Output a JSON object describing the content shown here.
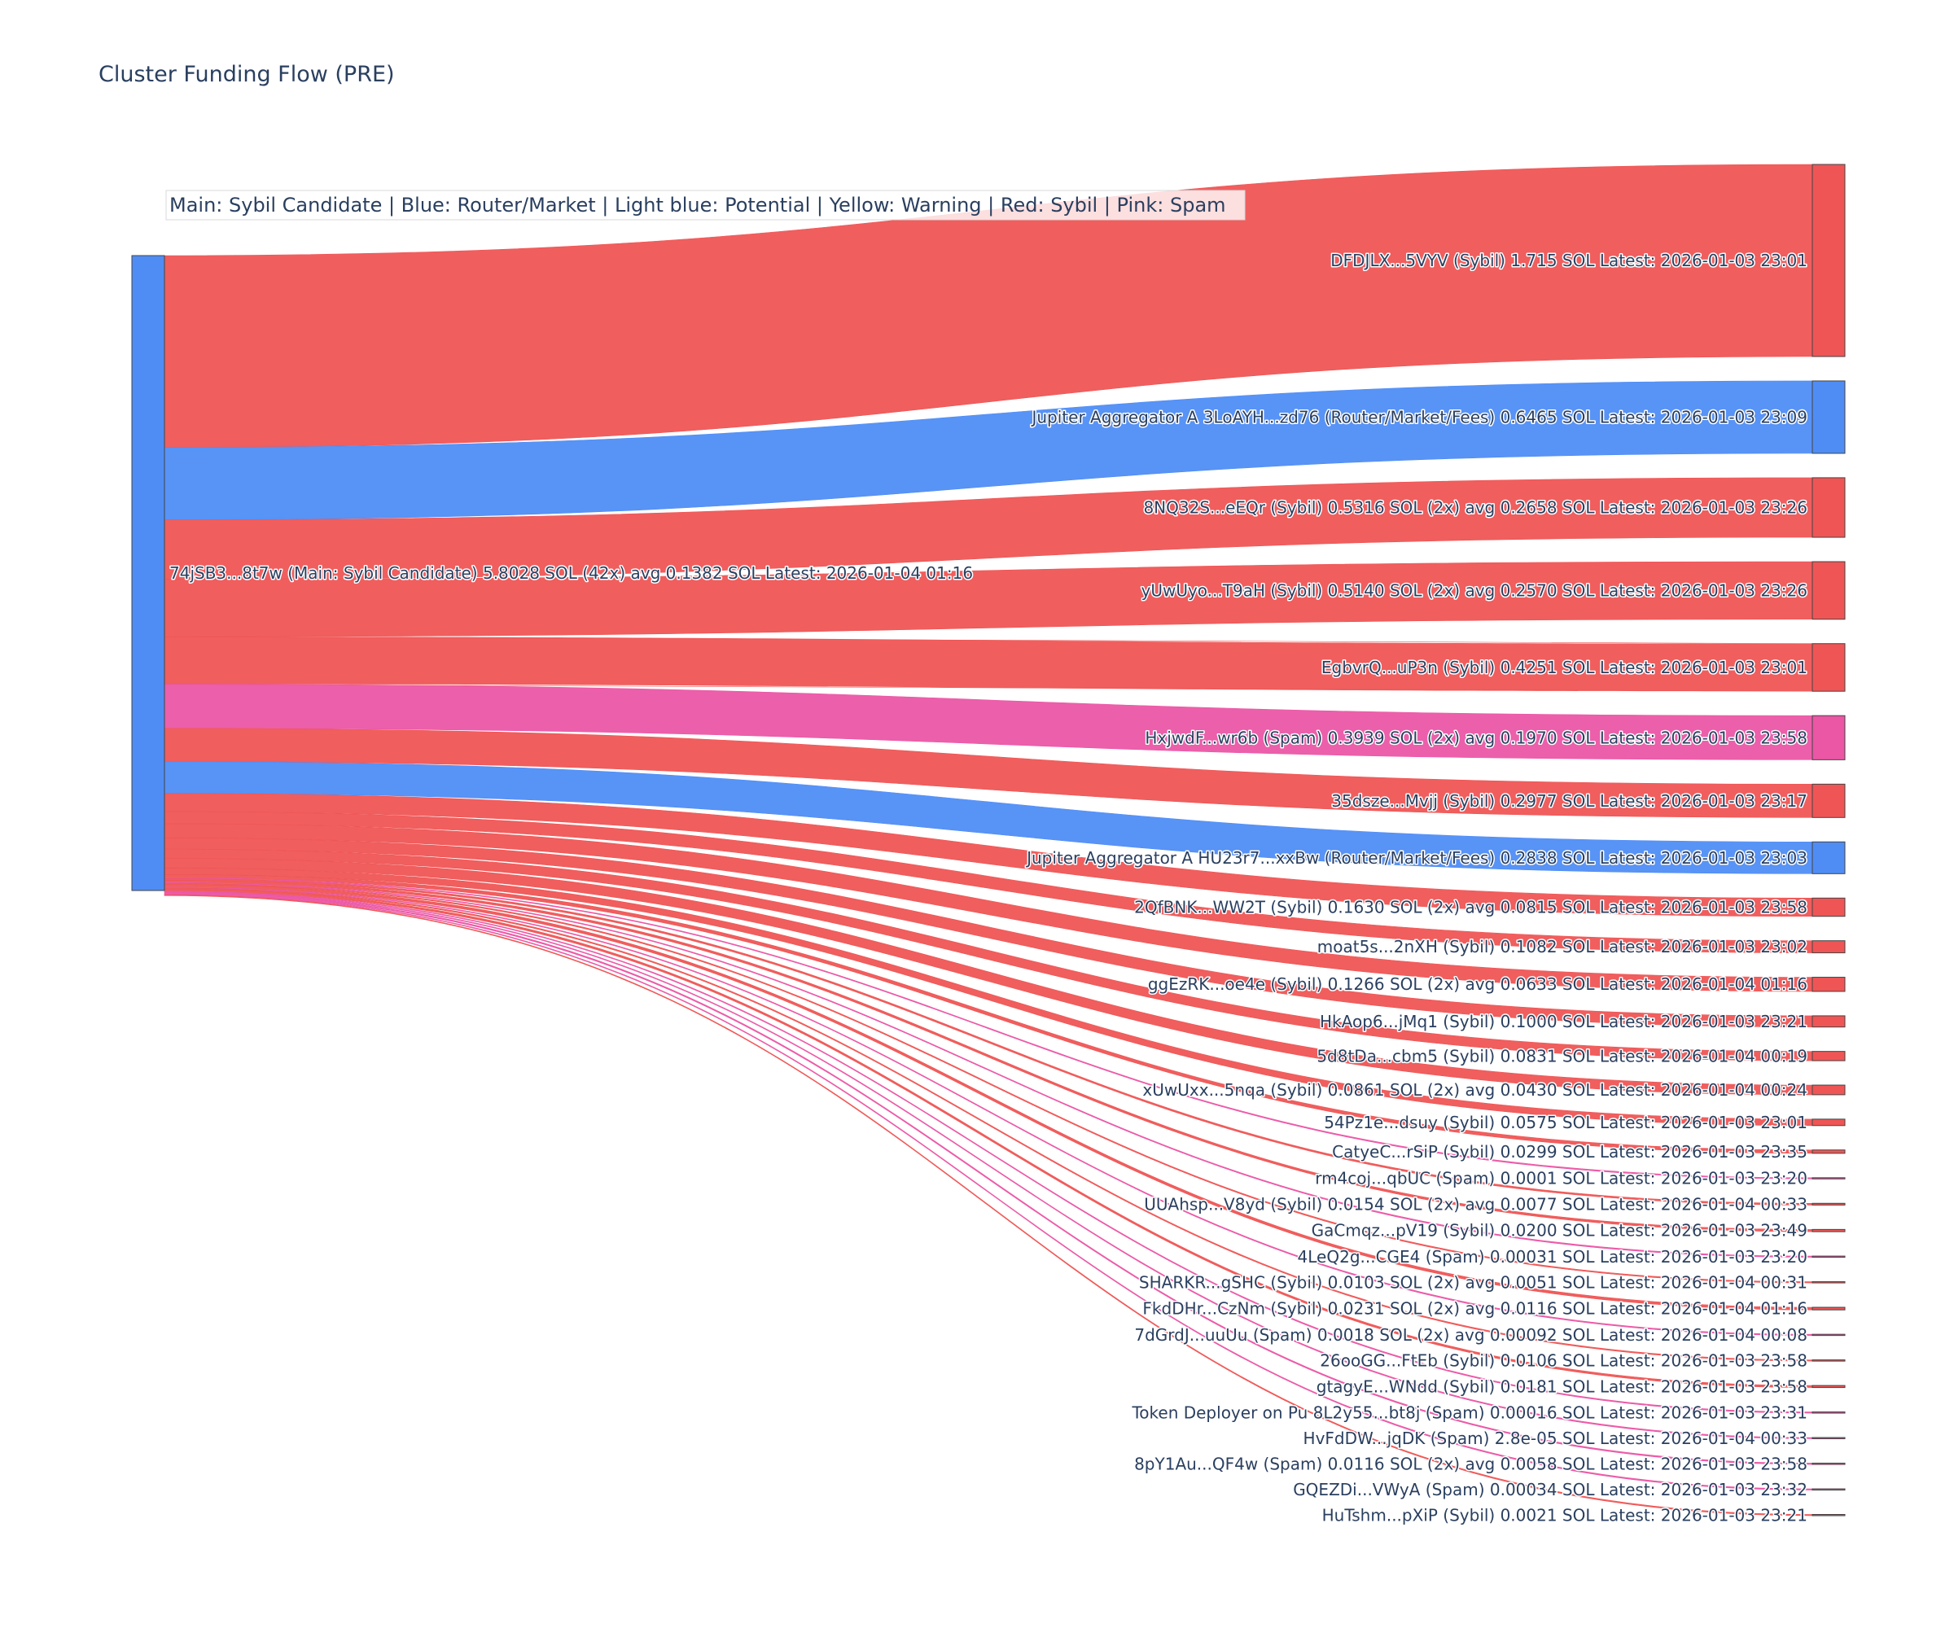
{
  "chart_data": {
    "type": "sankey",
    "title": "Cluster Funding Flow (PRE)",
    "legend_note": "Main: Sybil Candidate  |  Blue: Router/Market | Light blue: Potential | Yellow: Warning | Red: Sybil | Pink: Spam",
    "colors": {
      "main": "#4f8df5",
      "router": "#4f8df5",
      "sybil": "#ef5555",
      "spam": "#eb56a5"
    },
    "source": {
      "label": "74jSB3...8t7w (Main: Sybil Candidate) 5.8028 SOL (42x) avg 0.1382 SOL Latest: 2026-01-04 01:16",
      "category": "main",
      "value": 5.8028
    },
    "targets": [
      {
        "label": "DFDJLX...5VYV (Sybil) 1.715 SOL Latest: 2026-01-03 23:01",
        "category": "sybil",
        "value": 1.715
      },
      {
        "label": "Jupiter Aggregator A 3LoAYH...zd76 (Router/Market/Fees) 0.6465 SOL Latest: 2026-01-03 23:09",
        "category": "router",
        "value": 0.6465
      },
      {
        "label": "8NQ32S...eEQr (Sybil) 0.5316 SOL (2x) avg 0.2658 SOL Latest: 2026-01-03 23:26",
        "category": "sybil",
        "value": 0.5316
      },
      {
        "label": "yUwUyo...T9aH (Sybil) 0.5140 SOL (2x) avg 0.2570 SOL Latest: 2026-01-03 23:26",
        "category": "sybil",
        "value": 0.514
      },
      {
        "label": "EgbvrQ...uP3n (Sybil) 0.4251 SOL Latest: 2026-01-03 23:01",
        "category": "sybil",
        "value": 0.4251
      },
      {
        "label": "HxjwdF...wr6b (Spam) 0.3939 SOL (2x) avg 0.1970 SOL Latest: 2026-01-03 23:58",
        "category": "spam",
        "value": 0.3939
      },
      {
        "label": "35dsze...Mvjj (Sybil) 0.2977 SOL Latest: 2026-01-03 23:17",
        "category": "sybil",
        "value": 0.2977
      },
      {
        "label": "Jupiter Aggregator A HU23r7...xxBw (Router/Market/Fees) 0.2838 SOL Latest: 2026-01-03 23:03",
        "category": "router",
        "value": 0.2838
      },
      {
        "label": "2QfBNK...WW2T (Sybil) 0.1630 SOL (2x) avg 0.0815 SOL Latest: 2026-01-03 23:58",
        "category": "sybil",
        "value": 0.163
      },
      {
        "label": "moat5s...2nXH (Sybil) 0.1082 SOL Latest: 2026-01-03 23:02",
        "category": "sybil",
        "value": 0.1082
      },
      {
        "label": "ggEzRK...oe4e (Sybil) 0.1266 SOL (2x) avg 0.0633 SOL Latest: 2026-01-04 01:16",
        "category": "sybil",
        "value": 0.1266
      },
      {
        "label": "HkAop6...jMq1 (Sybil) 0.1000 SOL Latest: 2026-01-03 23:21",
        "category": "sybil",
        "value": 0.1
      },
      {
        "label": "5d8tDa...cbm5 (Sybil) 0.0831 SOL Latest: 2026-01-04 00:19",
        "category": "sybil",
        "value": 0.0831
      },
      {
        "label": "xUwUxx...5nqa (Sybil) 0.0861 SOL (2x) avg 0.0430 SOL Latest: 2026-01-04 00:24",
        "category": "sybil",
        "value": 0.0861
      },
      {
        "label": "54Pz1e...dsuy (Sybil) 0.0575 SOL Latest: 2026-01-03 23:01",
        "category": "sybil",
        "value": 0.0575
      },
      {
        "label": "CatyeC...rSiP (Sybil) 0.0299 SOL Latest: 2026-01-03 23:35",
        "category": "sybil",
        "value": 0.0299
      },
      {
        "label": "rm4coj...qbUC (Spam) 0.0001 SOL Latest: 2026-01-03 23:20",
        "category": "spam",
        "value": 0.0001
      },
      {
        "label": "UUAhsp...V8yd (Sybil) 0.0154 SOL (2x) avg 0.0077 SOL Latest: 2026-01-04 00:33",
        "category": "sybil",
        "value": 0.0154
      },
      {
        "label": "GaCmqz...pV19 (Sybil) 0.0200 SOL Latest: 2026-01-03 23:49",
        "category": "sybil",
        "value": 0.02
      },
      {
        "label": "4LeQ2g...CGE4 (Spam) 0.00031 SOL Latest: 2026-01-03 23:20",
        "category": "spam",
        "value": 0.00031
      },
      {
        "label": "SHARKR...gSHC (Sybil) 0.0103 SOL (2x) avg 0.0051 SOL Latest: 2026-01-04 00:31",
        "category": "sybil",
        "value": 0.0103
      },
      {
        "label": "FkdDHr...CzNm (Sybil) 0.0231 SOL (2x) avg 0.0116 SOL Latest: 2026-01-04 01:16",
        "category": "sybil",
        "value": 0.0231
      },
      {
        "label": "7dGrdJ...uuUu (Spam) 0.0018 SOL (2x) avg 0.00092 SOL Latest: 2026-01-04 00:08",
        "category": "spam",
        "value": 0.0018
      },
      {
        "label": "26ooGG...FtEb (Sybil) 0.0106 SOL Latest: 2026-01-03 23:58",
        "category": "sybil",
        "value": 0.0106
      },
      {
        "label": "gtagyE...WNdd (Sybil) 0.0181 SOL Latest: 2026-01-03 23:58",
        "category": "sybil",
        "value": 0.0181
      },
      {
        "label": "Token Deployer on Pu 8L2y55...bt8j (Spam) 0.00016 SOL Latest: 2026-01-03 23:31",
        "category": "spam",
        "value": 0.00016
      },
      {
        "label": "HvFdDW...jqDK (Spam) 2.8e-05 SOL Latest: 2026-01-04 00:33",
        "category": "spam",
        "value": 2.8e-05
      },
      {
        "label": "8pY1Au...QF4w (Spam) 0.0116 SOL (2x) avg 0.0058 SOL Latest: 2026-01-03 23:58",
        "category": "spam",
        "value": 0.0116
      },
      {
        "label": "GQEZDi...VWyA (Spam) 0.00034 SOL Latest: 2026-01-03 23:32",
        "category": "spam",
        "value": 0.00034
      },
      {
        "label": "HuTshm...pXiP (Sybil) 0.0021 SOL Latest: 2026-01-03 23:21",
        "category": "sybil",
        "value": 0.0021
      }
    ]
  }
}
